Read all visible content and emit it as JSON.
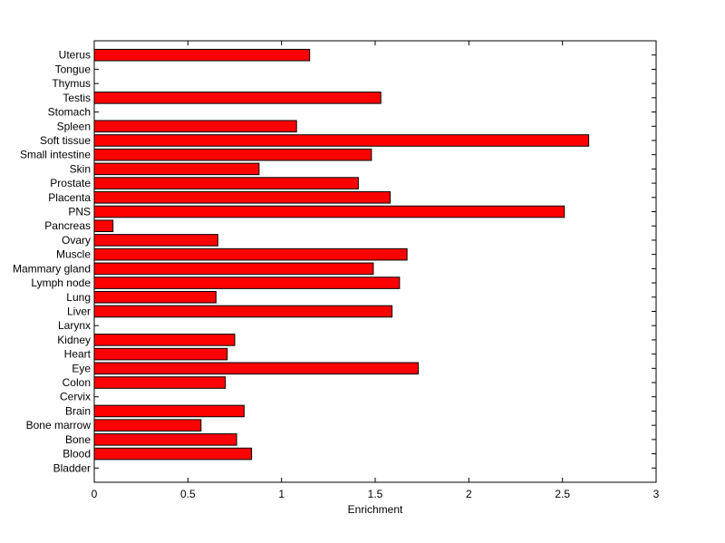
{
  "chart_data": {
    "type": "bar",
    "orientation": "horizontal",
    "xlabel": "Enrichment",
    "ylabel": "",
    "title": "",
    "xlim": [
      0,
      3
    ],
    "xticks": [
      0,
      0.5,
      1,
      1.5,
      2,
      2.5,
      3
    ],
    "xtick_labels": [
      "0",
      "0.5",
      "1",
      "1.5",
      "2",
      "2.5",
      "3"
    ],
    "grid": false,
    "bar_color": "#ff0000",
    "bar_edge_color": "#000000",
    "categories": [
      "Bladder",
      "Blood",
      "Bone",
      "Bone marrow",
      "Brain",
      "Cervix",
      "Colon",
      "Eye",
      "Heart",
      "Kidney",
      "Larynx",
      "Liver",
      "Lung",
      "Lymph node",
      "Mammary gland",
      "Muscle",
      "Ovary",
      "Pancreas",
      "PNS",
      "Placenta",
      "Prostate",
      "Skin",
      "Small intestine",
      "Soft tissue",
      "Spleen",
      "Stomach",
      "Testis",
      "Thymus",
      "Tongue",
      "Uterus"
    ],
    "values": [
      0,
      0.84,
      0.76,
      0.57,
      0.8,
      0,
      0.7,
      1.73,
      0.71,
      0.75,
      0,
      1.59,
      0.65,
      1.63,
      1.49,
      1.67,
      0.66,
      0.1,
      2.51,
      1.58,
      1.41,
      0.88,
      1.48,
      2.64,
      1.08,
      0,
      1.53,
      0,
      0,
      1.15
    ]
  }
}
